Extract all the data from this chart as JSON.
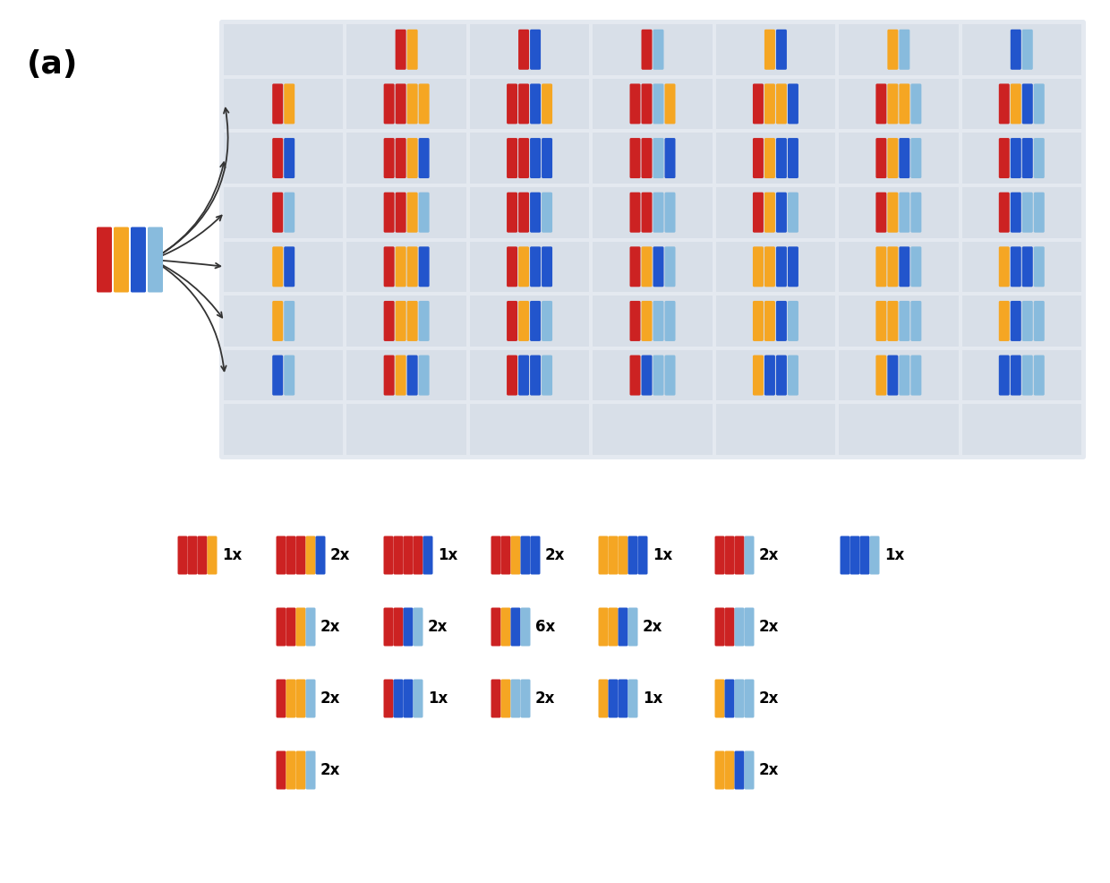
{
  "colors": {
    "red": "#cc2222",
    "orange": "#f5a623",
    "blue": "#2255cc",
    "light_blue": "#88bbdd",
    "grid_bg": "#e4e9f0",
    "cell_bg": "#d8dfe8"
  },
  "parent_chrom": [
    "red",
    "orange",
    "blue",
    "light_blue"
  ],
  "label": "(a)",
  "grid_rows": 8,
  "grid_cols": 7,
  "header_row": [
    null,
    [
      "red",
      "orange"
    ],
    [
      "red",
      "blue"
    ],
    [
      "red",
      "light_blue"
    ],
    [
      "orange",
      "blue"
    ],
    [
      "orange",
      "light_blue"
    ],
    [
      "blue",
      "light_blue"
    ]
  ],
  "grid_cells": [
    [
      [
        "red",
        "orange"
      ],
      [
        "red",
        "red",
        "orange",
        "orange"
      ],
      [
        "red",
        "red",
        "blue",
        "orange"
      ],
      [
        "red",
        "red",
        "light_blue",
        "orange"
      ],
      [
        "red",
        "orange",
        "orange",
        "blue"
      ],
      [
        "red",
        "orange",
        "orange",
        "light_blue"
      ],
      [
        "red",
        "orange",
        "blue",
        "light_blue"
      ]
    ],
    [
      [
        "red",
        "blue"
      ],
      [
        "red",
        "red",
        "orange",
        "blue"
      ],
      [
        "red",
        "red",
        "blue",
        "blue"
      ],
      [
        "red",
        "red",
        "light_blue",
        "blue"
      ],
      [
        "red",
        "orange",
        "blue",
        "blue"
      ],
      [
        "red",
        "orange",
        "blue",
        "light_blue"
      ],
      [
        "red",
        "blue",
        "blue",
        "light_blue"
      ]
    ],
    [
      [
        "red",
        "light_blue"
      ],
      [
        "red",
        "red",
        "orange",
        "light_blue"
      ],
      [
        "red",
        "red",
        "blue",
        "light_blue"
      ],
      [
        "red",
        "red",
        "light_blue",
        "light_blue"
      ],
      [
        "red",
        "orange",
        "blue",
        "light_blue"
      ],
      [
        "red",
        "orange",
        "light_blue",
        "light_blue"
      ],
      [
        "red",
        "blue",
        "light_blue",
        "light_blue"
      ]
    ],
    [
      [
        "orange",
        "blue"
      ],
      [
        "red",
        "orange",
        "orange",
        "blue"
      ],
      [
        "red",
        "orange",
        "blue",
        "blue"
      ],
      [
        "red",
        "orange",
        "blue",
        "light_blue"
      ],
      [
        "orange",
        "orange",
        "blue",
        "blue"
      ],
      [
        "orange",
        "orange",
        "blue",
        "light_blue"
      ],
      [
        "orange",
        "blue",
        "blue",
        "light_blue"
      ]
    ],
    [
      [
        "orange",
        "light_blue"
      ],
      [
        "red",
        "orange",
        "orange",
        "light_blue"
      ],
      [
        "red",
        "orange",
        "blue",
        "light_blue"
      ],
      [
        "red",
        "orange",
        "light_blue",
        "light_blue"
      ],
      [
        "orange",
        "orange",
        "blue",
        "light_blue"
      ],
      [
        "orange",
        "orange",
        "light_blue",
        "light_blue"
      ],
      [
        "orange",
        "blue",
        "light_blue",
        "light_blue"
      ]
    ],
    [
      [
        "blue",
        "light_blue"
      ],
      [
        "red",
        "orange",
        "blue",
        "light_blue"
      ],
      [
        "red",
        "blue",
        "blue",
        "light_blue"
      ],
      [
        "red",
        "blue",
        "light_blue",
        "light_blue"
      ],
      [
        "orange",
        "blue",
        "blue",
        "light_blue"
      ],
      [
        "orange",
        "blue",
        "light_blue",
        "light_blue"
      ],
      [
        "blue",
        "blue",
        "light_blue",
        "light_blue"
      ]
    ]
  ],
  "legend_rows": [
    [
      {
        "colors": [
          "red",
          "red",
          "red",
          "orange"
        ],
        "count": "1x"
      },
      {
        "colors": [
          "red",
          "red",
          "red",
          "orange",
          "blue"
        ],
        "count": "2x"
      },
      {
        "colors": [
          "red",
          "red",
          "red",
          "red",
          "blue"
        ],
        "count": "1x"
      },
      {
        "colors": [
          "red",
          "red",
          "orange",
          "blue",
          "blue"
        ],
        "count": "2x"
      },
      {
        "colors": [
          "orange",
          "orange",
          "orange",
          "blue",
          "blue"
        ],
        "count": "1x"
      },
      {
        "colors": [
          "red",
          "red",
          "red",
          "light_blue"
        ],
        "count": "2x"
      },
      {
        "colors": [
          "blue",
          "blue",
          "blue",
          "light_blue"
        ],
        "count": "1x"
      }
    ],
    [
      {
        "colors": [
          "red",
          "red",
          "orange",
          "light_blue"
        ],
        "count": "2x"
      },
      {
        "colors": [
          "red",
          "red",
          "blue",
          "light_blue"
        ],
        "count": "2x"
      },
      {
        "colors": [
          "red",
          "orange",
          "blue",
          "light_blue"
        ],
        "count": "6x"
      },
      {
        "colors": [
          "orange",
          "orange",
          "blue",
          "light_blue"
        ],
        "count": "2x"
      },
      {
        "colors": [
          "red",
          "red",
          "light_blue",
          "light_blue"
        ],
        "count": "2x"
      }
    ],
    [
      {
        "colors": [
          "red",
          "orange",
          "orange",
          "light_blue"
        ],
        "count": "2x"
      },
      {
        "colors": [
          "red",
          "blue",
          "blue",
          "light_blue"
        ],
        "count": "1x"
      },
      {
        "colors": [
          "red",
          "orange",
          "light_blue",
          "light_blue"
        ],
        "count": "2x"
      },
      {
        "colors": [
          "orange",
          "blue",
          "blue",
          "light_blue"
        ],
        "count": "1x"
      },
      {
        "colors": [
          "orange",
          "blue",
          "light_blue",
          "light_blue"
        ],
        "count": "2x"
      }
    ],
    [
      {
        "colors": [
          "red",
          "orange",
          "orange",
          "light_blue"
        ],
        "count": "2x"
      },
      {
        "colors": [
          "orange",
          "orange",
          "blue",
          "light_blue"
        ],
        "count": "2x"
      }
    ]
  ]
}
